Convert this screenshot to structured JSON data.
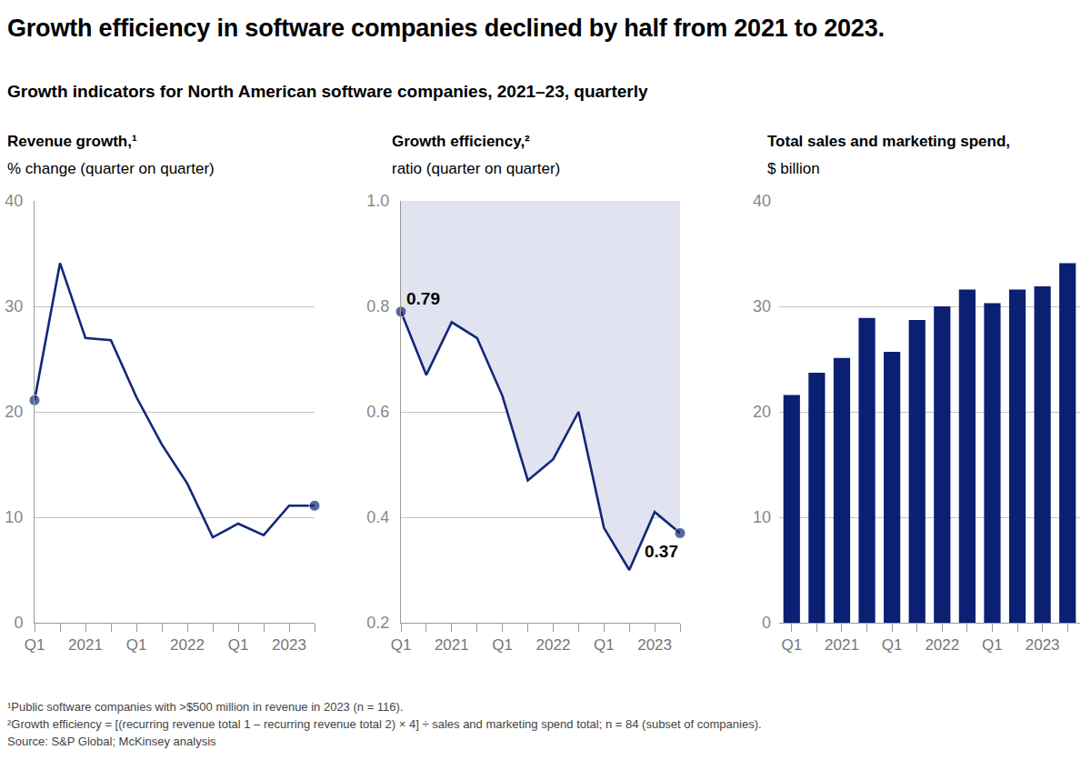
{
  "title": "Growth efficiency in software companies declined by half from 2021 to 2023.",
  "subtitle": "Growth indicators for North American software companies, 2021–23, quarterly",
  "notes": [
    "¹Public software companies with >$500 million in revenue in 2023 (n = 116).",
    "²Growth efficiency = [(recurring revenue total 1 – recurring revenue total 2) × 4] ÷ sales and marketing spend total; n = 84 (subset of companies).",
    "Source: S&P Global; McKinsey analysis"
  ],
  "chart_data": [
    {
      "type": "line",
      "title": "Revenue growth,¹",
      "subtitle": "% change (quarter on quarter)",
      "categories": [
        "Q1",
        null,
        "2021",
        null,
        "Q1",
        null,
        "2022",
        null,
        "Q1",
        null,
        "2023",
        null
      ],
      "values": [
        21.1,
        34.1,
        27.0,
        26.8,
        21.4,
        16.9,
        13.2,
        8.1,
        9.4,
        8.3,
        11.1,
        11.1
      ],
      "color": "#13277a",
      "ylim": [
        0,
        40
      ],
      "yticks": [
        0,
        10,
        20,
        30,
        40
      ],
      "grid": true,
      "marker": "endpoints"
    },
    {
      "type": "area",
      "title": "Growth efficiency,²",
      "subtitle": "ratio (quarter on quarter)",
      "categories": [
        "Q1",
        null,
        "2021",
        null,
        "Q1",
        null,
        "2022",
        null,
        "Q1",
        null,
        "2023",
        null
      ],
      "values": [
        0.79,
        0.67,
        0.77,
        0.74,
        0.63,
        0.47,
        0.51,
        0.6,
        0.38,
        0.3,
        0.41,
        0.37
      ],
      "value_labels": [
        "0.79",
        null,
        null,
        null,
        null,
        null,
        null,
        null,
        null,
        null,
        null,
        "0.37"
      ],
      "color": "#13277a",
      "ylim": [
        0.2,
        1.0
      ],
      "yticks": [
        0.2,
        0.4,
        0.6,
        0.8,
        {
          "value": 1.0,
          "label": "1.0"
        }
      ],
      "grid": true,
      "marker": "endpoints"
    },
    {
      "type": "bar",
      "title": "Total sales and marketing spend,",
      "subtitle": "$ billion",
      "categories": [
        "Q1",
        null,
        "2021",
        null,
        "Q1",
        null,
        "2022",
        null,
        "Q1",
        null,
        "2023",
        null
      ],
      "values": [
        21.6,
        23.7,
        25.1,
        28.9,
        25.7,
        28.7,
        30.0,
        31.6,
        30.3,
        31.6,
        31.9,
        34.1
      ],
      "color": "#0b1f73",
      "ylim": [
        0,
        40
      ],
      "yticks": [
        0,
        10,
        20,
        30,
        40
      ],
      "grid": true
    }
  ]
}
